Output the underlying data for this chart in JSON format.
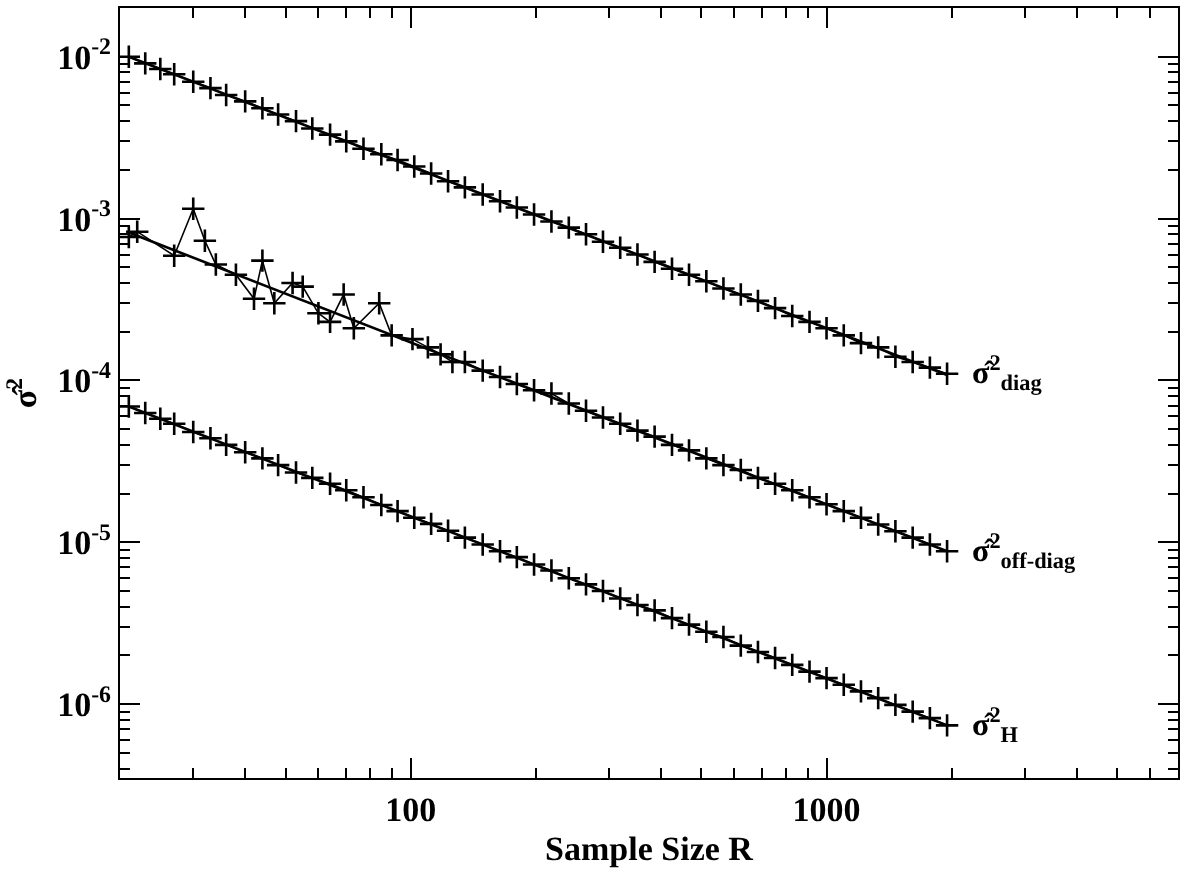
{
  "chart_data": {
    "type": "line",
    "xlabel": "Sample Size R",
    "ylabel": "σ̂$^{2}$",
    "log": "xy",
    "legend": "right",
    "line_style": "solid",
    "xlim": [
      20,
      7000
    ],
    "ylim": [
      3.5e-07,
      0.02
    ],
    "xticks": [
      {
        "value": 30,
        "label": null
      },
      {
        "value": 40,
        "label": null
      },
      {
        "value": 50,
        "label": null
      },
      {
        "value": 60,
        "label": null
      },
      {
        "value": 70,
        "label": null
      },
      {
        "value": 80,
        "label": null
      },
      {
        "value": 90,
        "label": null
      },
      100,
      {
        "value": 200,
        "label": null
      },
      {
        "value": 300,
        "label": null
      },
      {
        "value": 400,
        "label": null
      },
      {
        "value": 500,
        "label": null
      },
      {
        "value": 600,
        "label": null
      },
      {
        "value": 700,
        "label": null
      },
      {
        "value": 800,
        "label": null
      },
      {
        "value": 900,
        "label": null
      },
      1000,
      {
        "value": 2000,
        "label": null
      },
      {
        "value": 3000,
        "label": null
      },
      {
        "value": 4000,
        "label": null
      },
      {
        "value": 5000,
        "label": null
      },
      {
        "value": 6000,
        "label": null
      },
      {
        "value": 7000,
        "label": null
      }
    ],
    "yticks": [
      {
        "value": 0.01,
        "label": "10$^{-2}$"
      },
      {
        "value": 0.002,
        "label": null
      },
      {
        "value": 0.003,
        "label": null
      },
      {
        "value": 0.004,
        "label": null
      },
      {
        "value": 0.005,
        "label": null
      },
      {
        "value": 0.006,
        "label": null
      },
      {
        "value": 0.007,
        "label": null
      },
      {
        "value": 0.008,
        "label": null
      },
      {
        "value": 0.009,
        "label": null
      },
      {
        "value": 0.001,
        "label": "10$^{-3}$"
      },
      {
        "value": 0.0002,
        "label": null
      },
      {
        "value": 0.0003,
        "label": null
      },
      {
        "value": 0.0004,
        "label": null
      },
      {
        "value": 0.0005,
        "label": null
      },
      {
        "value": 0.0006,
        "label": null
      },
      {
        "value": 0.0007,
        "label": null
      },
      {
        "value": 0.0008,
        "label": null
      },
      {
        "value": 0.0009,
        "label": null
      },
      {
        "value": 0.0001,
        "label": "10$^{-4}$"
      },
      {
        "value": 2e-05,
        "label": null
      },
      {
        "value": 3e-05,
        "label": null
      },
      {
        "value": 4e-05,
        "label": null
      },
      {
        "value": 5e-05,
        "label": null
      },
      {
        "value": 6e-05,
        "label": null
      },
      {
        "value": 7e-05,
        "label": null
      },
      {
        "value": 8e-05,
        "label": null
      },
      {
        "value": 9e-05,
        "label": null
      },
      {
        "value": 1e-05,
        "label": "10$^{-5}$"
      },
      {
        "value": 2e-06,
        "label": null
      },
      {
        "value": 3e-06,
        "label": null
      },
      {
        "value": 4e-06,
        "label": null
      },
      {
        "value": 5e-06,
        "label": null
      },
      {
        "value": 6e-06,
        "label": null
      },
      {
        "value": 7e-06,
        "label": null
      },
      {
        "value": 8e-06,
        "label": null
      },
      {
        "value": 9e-06,
        "label": null
      },
      {
        "value": 1e-06,
        "label": "10$^{-6}$"
      },
      {
        "value": 4e-07,
        "label": null
      },
      {
        "value": 5e-07,
        "label": null
      },
      {
        "value": 6e-07,
        "label": null
      },
      {
        "value": 7e-07,
        "label": null
      },
      {
        "value": 8e-07,
        "label": null
      },
      {
        "value": 9e-07,
        "label": null
      }
    ],
    "x": [
      21,
      23,
      25,
      27,
      30,
      33,
      36,
      40,
      44,
      48,
      53,
      58,
      64,
      70,
      77,
      85,
      93,
      102,
      112,
      123,
      135,
      149,
      164,
      180,
      198,
      218,
      240,
      264,
      290,
      319,
      351,
      386,
      425,
      467,
      514,
      565,
      622,
      684,
      752,
      827,
      910,
      1000,
      1100,
      1210,
      1331,
      1464,
      1611,
      1772,
      1949
    ],
    "series": [
      {
        "name": "σ̂$^{2}$$_{diag}$",
        "color": "#000000",
        "marker": "cross",
        "values": [
          0.01,
          0.0091,
          0.0084,
          0.0078,
          0.007,
          0.0064,
          0.0058,
          0.0053,
          0.0048,
          0.0044,
          0.004,
          0.0036,
          0.0033,
          0.003,
          0.0027,
          0.0025,
          0.0023,
          0.0021,
          0.0019,
          0.0017,
          0.00156,
          0.00141,
          0.00128,
          0.00117,
          0.00106,
          0.00096,
          0.00088,
          0.0008,
          0.00072,
          0.00066,
          0.0006,
          0.00054,
          0.00049,
          0.00045,
          0.00041,
          0.00037,
          0.00034,
          0.00031,
          0.00028,
          0.00025,
          0.00023,
          0.00021,
          0.00019,
          0.00017,
          0.00016,
          0.00014,
          0.00013,
          0.00012,
          0.00011
        ]
      },
      {
        "color": "#000000",
        "marker": "none",
        "x": [
          21,
          1949
        ],
        "values": [
          0.01,
          0.000108
        ]
      },
      {
        "name": "σ̂$^{2}$$_{off-diag}$",
        "color": "#000000",
        "marker": "cross",
        "x": [
          21,
          22,
          27,
          30,
          32,
          34,
          38,
          42,
          44,
          47,
          52,
          55,
          60,
          64,
          69,
          73,
          84,
          90,
          101,
          110,
          118,
          126,
          135,
          149,
          164,
          180,
          198,
          218,
          240,
          264,
          290,
          319,
          351,
          386,
          425,
          467,
          514,
          565,
          622,
          684,
          752,
          827,
          910,
          1000,
          1100,
          1210,
          1331,
          1464,
          1611,
          1772,
          1949
        ],
        "values": [
          0.00077,
          0.00083,
          0.00059,
          0.00115,
          0.00073,
          0.00052,
          0.00045,
          0.00032,
          0.00055,
          0.0003,
          0.0004,
          0.00038,
          0.00026,
          0.00023,
          0.00034,
          0.00021,
          0.0003,
          0.00019,
          0.00018,
          0.00016,
          0.000145,
          0.00013,
          0.00013,
          0.000115,
          0.000105,
          9.5e-05,
          8.7e-05,
          8.3e-05,
          7.2e-05,
          6.5e-05,
          5.9e-05,
          5.4e-05,
          4.9e-05,
          4.5e-05,
          4e-05,
          3.7e-05,
          3.3e-05,
          3e-05,
          2.8e-05,
          2.5e-05,
          2.3e-05,
          2.1e-05,
          1.9e-05,
          1.72e-05,
          1.56e-05,
          1.42e-05,
          1.29e-05,
          1.17e-05,
          1.07e-05,
          9.7e-06,
          8.8e-06
        ]
      },
      {
        "color": "#000000",
        "marker": "none",
        "x": [
          21,
          1949
        ],
        "values": [
          0.00082,
          8.8e-06
        ]
      },
      {
        "name": "σ̂$^{2}$$_{H}$",
        "color": "#000000",
        "marker": "cross",
        "values": [
          6.9e-05,
          6.3e-05,
          5.8e-05,
          5.4e-05,
          4.8e-05,
          4.4e-05,
          4e-05,
          3.6e-05,
          3.3e-05,
          3e-05,
          2.7e-05,
          2.5e-05,
          2.3e-05,
          2.1e-05,
          1.9e-05,
          1.7e-05,
          1.56e-05,
          1.42e-05,
          1.3e-05,
          1.18e-05,
          1.07e-05,
          9.7e-06,
          8.8e-06,
          8.1e-06,
          7.3e-06,
          6.7e-06,
          6e-06,
          5.5e-06,
          5e-06,
          4.5e-06,
          4.1e-06,
          3.8e-06,
          3.4e-06,
          3.1e-06,
          2.8e-06,
          2.6e-06,
          2.3e-06,
          2.1e-06,
          1.93e-06,
          1.75e-06,
          1.59e-06,
          1.45e-06,
          1.32e-06,
          1.2e-06,
          1.09e-06,
          9.9e-07,
          9e-07,
          8.2e-07,
          7.4e-07
        ]
      },
      {
        "color": "#000000",
        "marker": "none",
        "x": [
          21,
          1949
        ],
        "values": [
          6.9e-05,
          7.4e-07
        ]
      }
    ]
  }
}
